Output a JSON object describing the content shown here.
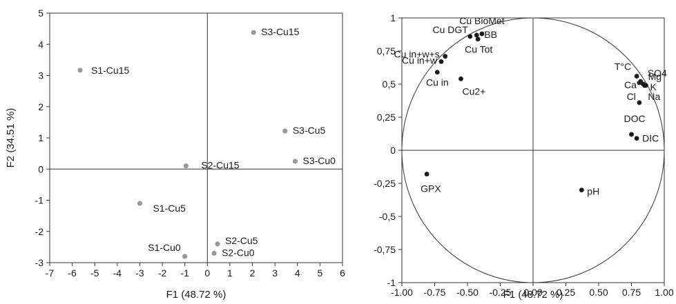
{
  "chart_data": [
    {
      "type": "scatter",
      "panel": "observations",
      "xlabel": "F1 (48.72 %)",
      "ylabel": "F2 (34.51 %)",
      "xlim": [
        -7,
        6
      ],
      "ylim": [
        -3,
        5
      ],
      "xticks": [
        "-7",
        "-6",
        "-5",
        "-4",
        "-3",
        "-2",
        "-1",
        "0",
        "1",
        "2",
        "3",
        "4",
        "5",
        "6"
      ],
      "yticks": [
        "-3",
        "-2",
        "-1",
        "0",
        "1",
        "2",
        "3",
        "4",
        "5"
      ],
      "point_color": "#999999",
      "grid": false,
      "points": [
        {
          "label": "S1-Cu15",
          "x": -5.65,
          "y": 3.17
        },
        {
          "label": "S3-Cu15",
          "x": 2.05,
          "y": 4.38
        },
        {
          "label": "S3-Cu5",
          "x": 3.45,
          "y": 1.22
        },
        {
          "label": "S3-Cu0",
          "x": 3.9,
          "y": 0.25
        },
        {
          "label": "S2-Cu15",
          "x": -0.95,
          "y": 0.1
        },
        {
          "label": "S1-Cu5",
          "x": -3.0,
          "y": -1.1
        },
        {
          "label": "S2-Cu5",
          "x": 0.45,
          "y": -2.4
        },
        {
          "label": "S2-Cu0",
          "x": 0.3,
          "y": -2.7
        },
        {
          "label": "S1-Cu0",
          "x": -1.0,
          "y": -2.8
        }
      ]
    },
    {
      "type": "scatter",
      "panel": "variables",
      "xlabel": "F1 (48.72 %)",
      "ylabel": "",
      "xlim": [
        -1,
        1
      ],
      "ylim": [
        -1,
        1
      ],
      "xticks": [
        "-1.00",
        "-0.75",
        "-0.50",
        "-0.25",
        "0.00",
        "0.25",
        "0.50",
        "0.75",
        "1.00"
      ],
      "yticks": [
        "-1",
        "-0,75",
        "-0,5",
        "-0,25",
        "0",
        "0,25",
        "0,5",
        "0,75",
        "1"
      ],
      "point_color": "#1a1a1a",
      "unit_circle": true,
      "grid": false,
      "points": [
        {
          "label": "Cu BioMet",
          "x": -0.39,
          "y": 0.88
        },
        {
          "label": "BB",
          "x": -0.43,
          "y": 0.87
        },
        {
          "label": "Cu Tot",
          "x": -0.42,
          "y": 0.84
        },
        {
          "label": "Cu DGT",
          "x": -0.48,
          "y": 0.86
        },
        {
          "label": "Cu in+w+s",
          "x": -0.67,
          "y": 0.71
        },
        {
          "label": "Cu in+w",
          "x": -0.7,
          "y": 0.67
        },
        {
          "label": "Cu in",
          "x": -0.73,
          "y": 0.59
        },
        {
          "label": "Cu2+",
          "x": -0.55,
          "y": 0.54
        },
        {
          "label": "SO4",
          "x": 0.82,
          "y": 0.52
        },
        {
          "label": "T°C",
          "x": 0.79,
          "y": 0.56
        },
        {
          "label": "Mg",
          "x": 0.84,
          "y": 0.5
        },
        {
          "label": "Ca",
          "x": 0.81,
          "y": 0.51
        },
        {
          "label": "K",
          "x": 0.85,
          "y": 0.49
        },
        {
          "label": "Cl",
          "x": 0.81,
          "y": 0.36
        },
        {
          "label": "Na",
          "x": 0.86,
          "y": 0.49
        },
        {
          "label": "DOC",
          "x": 0.75,
          "y": 0.12
        },
        {
          "label": "DIC",
          "x": 0.79,
          "y": 0.09
        },
        {
          "label": "GPX",
          "x": -0.81,
          "y": -0.18
        },
        {
          "label": "pH",
          "x": 0.37,
          "y": -0.3
        }
      ]
    }
  ]
}
